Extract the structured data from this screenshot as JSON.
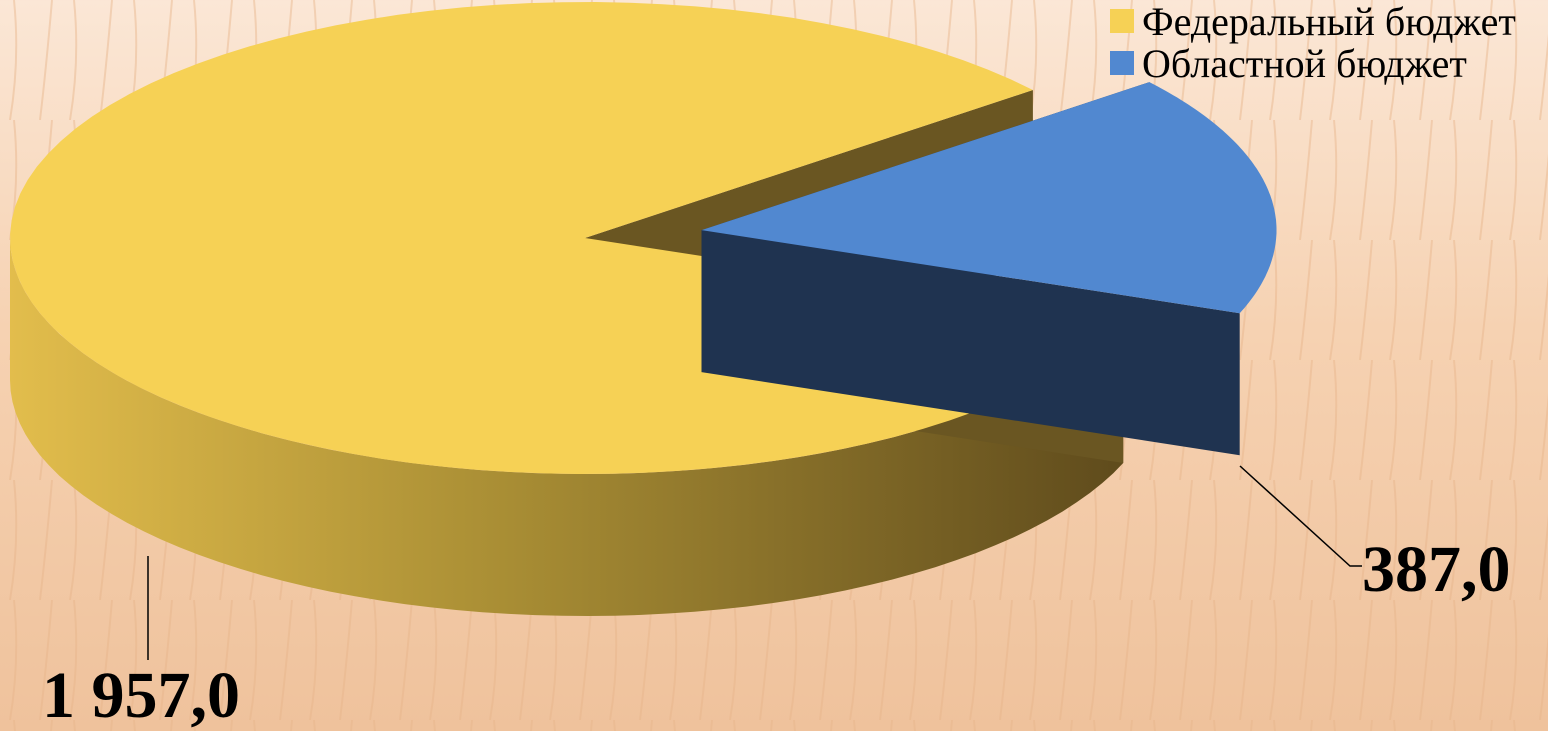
{
  "chart_data": {
    "type": "pie",
    "categories": [
      "Федеральный бюджет",
      "Областной бюджет"
    ],
    "values": [
      1957.0,
      387.0
    ],
    "value_labels": [
      "1 957,0",
      "387,0"
    ],
    "colors": [
      "#f6d155",
      "#5188d0"
    ],
    "exploded": [
      false,
      true
    ],
    "view": "3d",
    "legend_position": "top-right",
    "title": "",
    "legend": [
      {
        "label": "Федеральный бюджет",
        "color": "#f6d155"
      },
      {
        "label": "Областной бюджет",
        "color": "#5188d0"
      }
    ]
  }
}
